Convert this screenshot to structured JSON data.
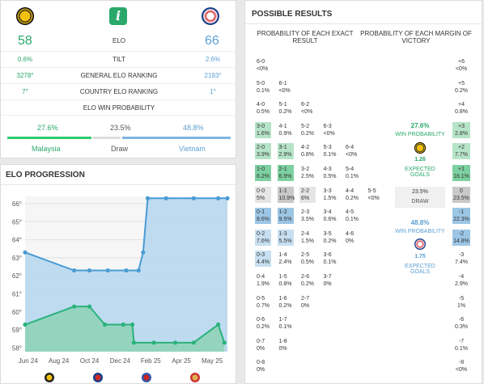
{
  "header": {
    "home": {
      "name": "Malaysia",
      "elo": "58",
      "tilt": "0.6%",
      "general_rank": "3278°",
      "country_rank": "7°",
      "win_prob": "27.6%"
    },
    "away": {
      "name": "Vietnam",
      "elo": "66",
      "tilt": "2.6%",
      "general_rank": "2193°",
      "country_rank": "1°",
      "win_prob": "48.8%"
    },
    "draw": {
      "label": "Draw",
      "prob": "23.5%"
    },
    "labels": {
      "elo": "ELO",
      "tilt": "TILT",
      "general": "GENERAL ELO RANKING",
      "country": "COUNTRY ELO RANKING",
      "win": "ELO WIN PROBABILITY"
    },
    "info_icon": "i",
    "colors": {
      "home": "#2ecc71",
      "away": "#7fb3e0"
    }
  },
  "elo_progression": {
    "title": "ELO PROGRESSION",
    "chart_data": {
      "type": "area",
      "x_ticks": [
        "Jun 24",
        "Aug 24",
        "Oct 24",
        "Dec 24",
        "Feb 25",
        "Apr 25",
        "May 25"
      ],
      "y_ticks": [
        "58°",
        "59°",
        "60°",
        "61°",
        "62°",
        "63°",
        "64°",
        "65°",
        "66°"
      ],
      "ylim": [
        57.8,
        66.4
      ],
      "series": [
        {
          "color": "#4a9bd5",
          "points": [
            [
              0,
              63.3
            ],
            [
              1.6,
              62.3
            ],
            [
              2.1,
              62.3
            ],
            [
              2.7,
              62.3
            ],
            [
              3.3,
              62.3
            ],
            [
              3.7,
              62.3
            ],
            [
              3.85,
              63.3
            ],
            [
              4.0,
              66.3
            ],
            [
              4.6,
              66.3
            ],
            [
              5.5,
              66.3
            ],
            [
              6.3,
              66.3
            ],
            [
              6.6,
              66.3
            ]
          ]
        },
        {
          "color": "#2ab27b",
          "points": [
            [
              0,
              59.3
            ],
            [
              1.6,
              60.3
            ],
            [
              2.1,
              60.3
            ],
            [
              2.6,
              59.3
            ],
            [
              3.2,
              59.3
            ],
            [
              3.5,
              59.3
            ],
            [
              3.55,
              58.3
            ],
            [
              4.2,
              58.3
            ],
            [
              4.9,
              58.3
            ],
            [
              5.5,
              58.3
            ],
            [
              6.3,
              59.3
            ],
            [
              6.5,
              58.3
            ]
          ]
        }
      ]
    }
  },
  "possible_results": {
    "title": "POSSIBLE RESULTS",
    "exact_header": "PROBABILITY OF EACH EXACT RESULT",
    "margin_header": "PROBABILITY OF EACH MARGIN OF VICTORY",
    "home_block": {
      "prob": "27.6%",
      "label": "WIN PROBABILITY",
      "goals": "1.26",
      "goals_label": "EXPECTED GOALS"
    },
    "draw_block": {
      "prob": "23.5%",
      "label": "DRAW"
    },
    "away_block": {
      "prob": "48.8%",
      "label": "WIN PROBABILITY",
      "goals": "1.75",
      "goals_label": "EXPECTED GOALS"
    },
    "rows": [
      {
        "cells": [
          [
            "6-0",
            "<0%",
            ""
          ]
        ],
        "margin": [
          "+6",
          "<0%",
          ""
        ]
      },
      {
        "cells": [
          [
            "5-0",
            "0.1%",
            ""
          ],
          [
            "6-1",
            "<0%",
            ""
          ]
        ],
        "margin": [
          "+5",
          "0.2%",
          ""
        ]
      },
      {
        "cells": [
          [
            "4-0",
            "0.5%",
            ""
          ],
          [
            "5-1",
            "0.2%",
            ""
          ],
          [
            "6-2",
            "<0%",
            ""
          ]
        ],
        "margin": [
          "+4",
          "0.8%",
          ""
        ]
      },
      {
        "cells": [
          [
            "3-0",
            "1.6%",
            "g1"
          ],
          [
            "4-1",
            "0.9%",
            ""
          ],
          [
            "5-2",
            "0.2%",
            ""
          ],
          [
            "6-3",
            "<0%",
            ""
          ]
        ],
        "margin": [
          "+3",
          "2.8%",
          "g1"
        ]
      },
      {
        "cells": [
          [
            "2-0",
            "3.9%",
            "g1"
          ],
          [
            "3-1",
            "2.9%",
            "g1"
          ],
          [
            "4-2",
            "0.8%",
            ""
          ],
          [
            "5-3",
            "0.1%",
            ""
          ],
          [
            "6-4",
            "<0%",
            ""
          ]
        ],
        "margin": [
          "+2",
          "7.7%",
          "g1"
        ]
      },
      {
        "cells": [
          [
            "1-0",
            "6.2%",
            "g2"
          ],
          [
            "2-1",
            "6.9%",
            "g2"
          ],
          [
            "3-2",
            "2.5%",
            ""
          ],
          [
            "4-3",
            "0.5%",
            ""
          ],
          [
            "5-4",
            "0.1%",
            ""
          ]
        ],
        "margin": [
          "+1",
          "16.1%",
          "g2"
        ]
      },
      {
        "cells": [
          [
            "0-0",
            "5%",
            "gray"
          ],
          [
            "1-1",
            "10.9%",
            "gray2"
          ],
          [
            "2-2",
            "6%",
            "gray"
          ],
          [
            "3-3",
            "1.5%",
            ""
          ],
          [
            "4-4",
            "0.2%",
            ""
          ],
          [
            "5-5",
            "<0%",
            ""
          ]
        ],
        "margin": [
          "0",
          "23.5%",
          "gray"
        ]
      },
      {
        "cells": [
          [
            "0-1",
            "8.6%",
            "b2"
          ],
          [
            "1-2",
            "9.5%",
            "b2"
          ],
          [
            "2-3",
            "3.5%",
            ""
          ],
          [
            "3-4",
            "0.6%",
            ""
          ],
          [
            "4-5",
            "0.1%",
            ""
          ]
        ],
        "margin": [
          "-1",
          "22.3%",
          "b1"
        ]
      },
      {
        "cells": [
          [
            "0-2",
            "7.6%",
            "b1"
          ],
          [
            "1-3",
            "5.5%",
            "b1"
          ],
          [
            "2-4",
            "1.5%",
            ""
          ],
          [
            "3-5",
            "0.2%",
            ""
          ],
          [
            "4-6",
            "0%",
            ""
          ]
        ],
        "margin": [
          "-2",
          "14.8%",
          "b1"
        ]
      },
      {
        "cells": [
          [
            "0-3",
            "4.4%",
            "b1"
          ],
          [
            "1-4",
            "2.4%",
            ""
          ],
          [
            "2-5",
            "0.5%",
            ""
          ],
          [
            "3-6",
            "0.1%",
            ""
          ]
        ],
        "margin": [
          "-3",
          "7.4%",
          ""
        ]
      },
      {
        "cells": [
          [
            "0-4",
            "1.9%",
            ""
          ],
          [
            "1-5",
            "0.8%",
            ""
          ],
          [
            "2-6",
            "0.2%",
            ""
          ],
          [
            "3-7",
            "0%",
            ""
          ]
        ],
        "margin": [
          "-4",
          "2.9%",
          ""
        ]
      },
      {
        "cells": [
          [
            "0-5",
            "0.7%",
            ""
          ],
          [
            "1-6",
            "0.2%",
            ""
          ],
          [
            "2-7",
            "0%",
            ""
          ]
        ],
        "margin": [
          "-5",
          "1%",
          ""
        ]
      },
      {
        "cells": [
          [
            "0-6",
            "0.2%",
            ""
          ],
          [
            "1-7",
            "0.1%",
            ""
          ]
        ],
        "margin": [
          "-6",
          "0.3%",
          ""
        ]
      },
      {
        "cells": [
          [
            "0-7",
            "0%",
            ""
          ],
          [
            "1-8",
            "0%",
            ""
          ]
        ],
        "margin": [
          "-7",
          "0.1%",
          ""
        ]
      },
      {
        "cells": [
          [
            "0-8",
            "0%",
            ""
          ]
        ],
        "margin": [
          "-8",
          "<0%",
          ""
        ]
      }
    ]
  }
}
